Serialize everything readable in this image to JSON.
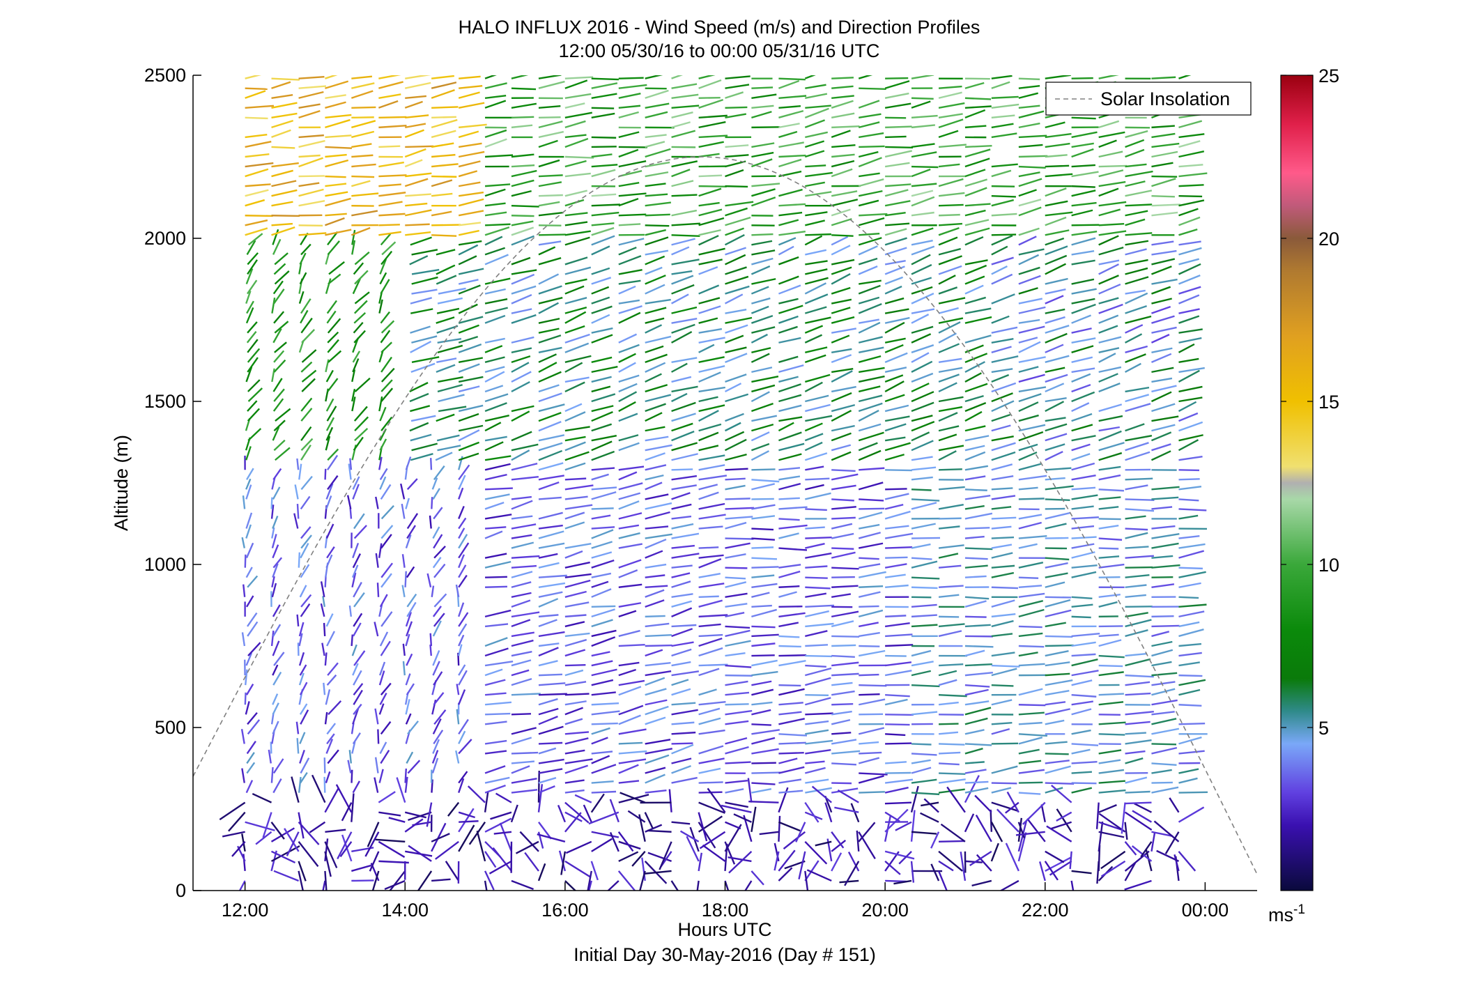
{
  "chart_data": {
    "type": "wind-barb-profile",
    "title": "HALO INFLUX 2016 - Wind Speed (m/s) and Direction Profiles",
    "subtitle": "12:00 05/30/16 to 00:00 05/31/16  UTC",
    "xlabel": "Hours UTC",
    "xlabel2": "Initial Day 30-May-2016 (Day # 151)",
    "ylabel": "Altitude (m)",
    "x_tick_labels": [
      "12:00",
      "14:00",
      "16:00",
      "18:00",
      "20:00",
      "22:00",
      "00:00"
    ],
    "x_ticks_hours": [
      12,
      14,
      16,
      18,
      20,
      22,
      24
    ],
    "xlim_hours": [
      11.35,
      24.65
    ],
    "y_ticks": [
      0,
      500,
      1000,
      1500,
      2000,
      2500
    ],
    "ylim": [
      0,
      2500
    ],
    "legend": {
      "label": "Solar Insolation",
      "placement": "top-right"
    },
    "colorbar": {
      "ticks": [
        5,
        10,
        15,
        20,
        25
      ],
      "range": [
        0,
        25
      ],
      "unit_label": "ms",
      "unit_exponent": "-1",
      "stops": [
        {
          "v": 0,
          "c": "#0a0a3c"
        },
        {
          "v": 2,
          "c": "#3a10b0"
        },
        {
          "v": 3,
          "c": "#6040e0"
        },
        {
          "v": 4.5,
          "c": "#7aa8f8"
        },
        {
          "v": 5.5,
          "c": "#2f8a8a"
        },
        {
          "v": 6.5,
          "c": "#0a7a0a"
        },
        {
          "v": 8,
          "c": "#0b8a0b"
        },
        {
          "v": 10,
          "c": "#3aa83a"
        },
        {
          "v": 12,
          "c": "#a8d8a8"
        },
        {
          "v": 12.5,
          "c": "#b0b0b0"
        },
        {
          "v": 13,
          "c": "#f0e070"
        },
        {
          "v": 15,
          "c": "#f0c000"
        },
        {
          "v": 17,
          "c": "#e0a020"
        },
        {
          "v": 19,
          "c": "#b07a30"
        },
        {
          "v": 20,
          "c": "#8a5a3a"
        },
        {
          "v": 21,
          "c": "#c05a7a"
        },
        {
          "v": 22,
          "c": "#ff5a8a"
        },
        {
          "v": 23.5,
          "c": "#e0204a"
        },
        {
          "v": 25,
          "c": "#9a0010"
        }
      ]
    },
    "profile_times_hours": [
      12.0,
      12.33,
      12.67,
      13.0,
      13.33,
      13.67,
      14.0,
      14.33,
      14.67,
      15.0,
      15.33,
      15.67,
      16.0,
      16.33,
      16.67,
      17.0,
      17.33,
      17.67,
      18.0,
      18.33,
      18.67,
      19.0,
      19.33,
      19.67,
      20.0,
      20.33,
      20.67,
      21.0,
      21.33,
      21.67,
      22.0,
      22.33,
      22.67,
      23.0,
      23.33,
      23.67
    ],
    "altitude_step_m": 30,
    "solar_insolation": {
      "peak_time_hours": 17.7,
      "peak_altitude_m": 2250,
      "start": [
        11.35,
        350
      ],
      "end": [
        24.65,
        50
      ]
    },
    "wind_regimes": [
      {
        "alt_range_m": [
          0,
          300
        ],
        "speed_ms": 1.5,
        "direction": "variable"
      },
      {
        "alt_range_m": [
          300,
          1300
        ],
        "speed_ms": 3.5,
        "direction": "mostly westerly"
      },
      {
        "alt_range_m": [
          1300,
          2000
        ],
        "speed_ms": 6,
        "direction": "north-westerly"
      },
      {
        "alt_range_m": [
          2000,
          2500
        ],
        "speed_ms": 11,
        "direction": "westerly"
      }
    ]
  }
}
